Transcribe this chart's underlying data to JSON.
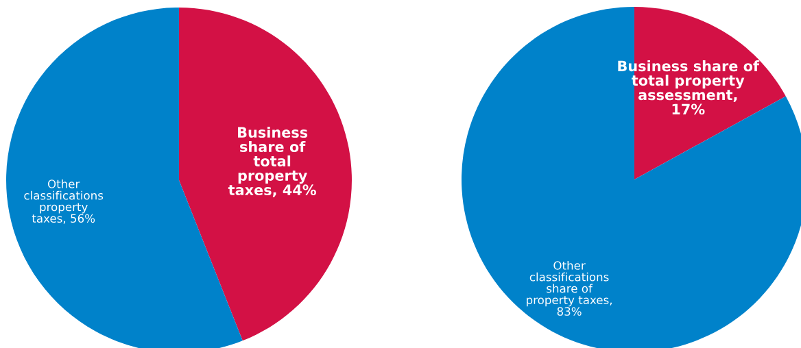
{
  "chart_data": [
    {
      "type": "pie",
      "categories": [
        "Business\nshare of\ntotal\nproperty\ntaxes, 44%",
        "Other\nclassifications\nproperty\ntaxes, 56%"
      ],
      "values": [
        44,
        56
      ],
      "colors": [
        "#d31145",
        "#0082ca"
      ]
    },
    {
      "type": "pie",
      "categories": [
        "Business share of\ntotal property\nassessment,\n17%",
        "Other\nclassifications\nshare of\nproperty taxes,\n83%"
      ],
      "values": [
        17,
        83
      ],
      "colors": [
        "#d31145",
        "#0082ca"
      ]
    }
  ]
}
